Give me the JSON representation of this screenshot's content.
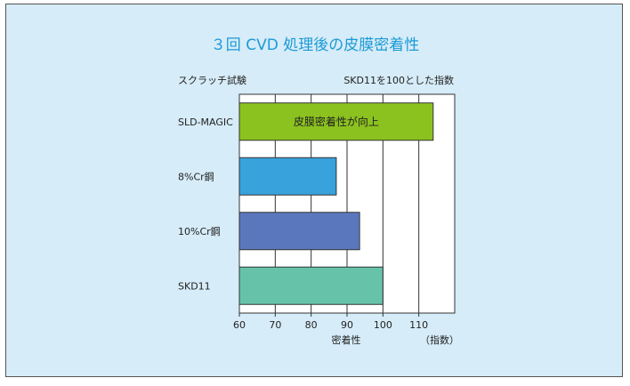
{
  "chart_data": {
    "type": "bar",
    "orientation": "horizontal",
    "title": "３回 CVD 処理後の皮膜密着性",
    "subtitle_left": "スクラッチ試験",
    "subtitle_right": "SKD11を100とした指数",
    "categories": [
      "SLD-MAGIC",
      "8%Cr鋼",
      "10%Cr鋼",
      "SKD11"
    ],
    "values": [
      114,
      87,
      93.5,
      100
    ],
    "bar_labels": [
      "皮膜密着性が向上",
      "",
      "",
      ""
    ],
    "xlabel": "密着性",
    "xunit": "（指数）",
    "xlim": [
      60,
      120
    ],
    "xticks": [
      60,
      70,
      80,
      90,
      100,
      110
    ],
    "grid": true,
    "colors": {
      "title": "#1b9ad6",
      "bars": [
        "#8cc21f",
        "#38a2dc",
        "#5a77be",
        "#66c3aa"
      ],
      "background": "#d6ecf8",
      "plot_background": "#ffffff"
    }
  }
}
